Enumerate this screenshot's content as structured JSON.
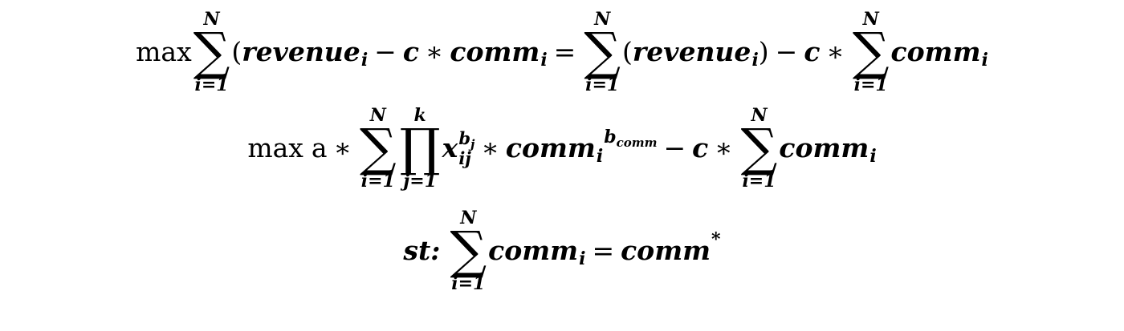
{
  "equation1": {
    "max_label": "max",
    "sum1": {
      "upper": "N",
      "lower": "i=1",
      "symbol": "∑"
    },
    "open_paren": "(",
    "revenue": "revenue",
    "sub_i": "i",
    "minus": "−",
    "c": "c",
    "times": "∗",
    "comm": "comm",
    "equals": "=",
    "sum2": {
      "upper": "N",
      "lower": "i=1",
      "symbol": "∑"
    },
    "revenue_paren_open": "(",
    "revenue_paren_close": ")",
    "sum3": {
      "upper": "N",
      "lower": "i=1",
      "symbol": "∑"
    }
  },
  "equation2": {
    "max_label": "max",
    "a": "a",
    "times": "∗",
    "sum1": {
      "upper": "N",
      "lower": "i=1",
      "symbol": "∑"
    },
    "prod": {
      "upper": "k",
      "lower": "j=1",
      "symbol": "∏"
    },
    "x": "x",
    "x_sup": "b",
    "x_sup_sub": "j",
    "x_sub": "ij",
    "comm": "comm",
    "comm_sub": "i",
    "comm_sup": "b",
    "comm_sup_sub": "comm",
    "minus": "−",
    "c": "c",
    "sum2": {
      "upper": "N",
      "lower": "i=1",
      "symbol": "∑"
    },
    "sub_i": "i"
  },
  "equation3": {
    "st_label": "st:",
    "sum": {
      "upper": "N",
      "lower": "i=1",
      "symbol": "∑"
    },
    "comm": "comm",
    "sub_i": "i",
    "equals": "=",
    "rhs": "comm",
    "rhs_sup": "*"
  }
}
